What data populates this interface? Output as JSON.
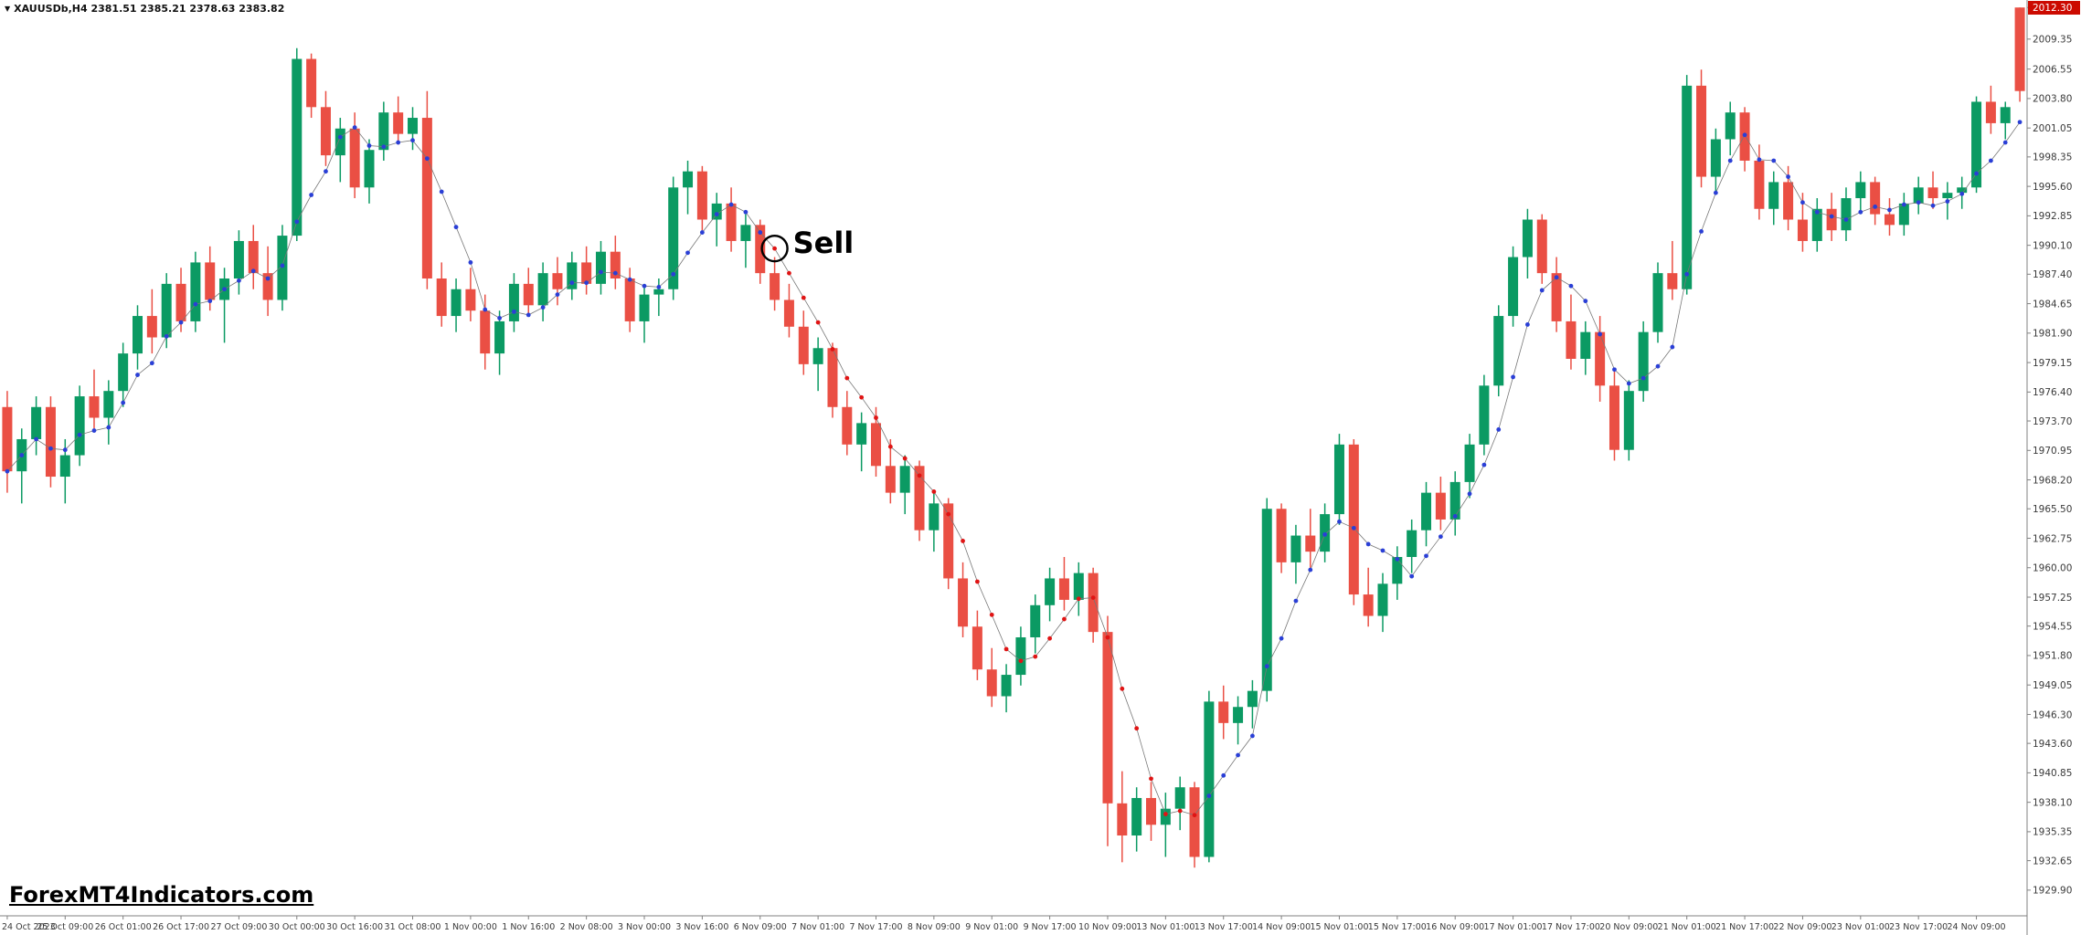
{
  "window": {
    "symbol_info": "XAUUSDb,H4  2381.51 2385.21 2378.63 2383.82",
    "watermark": "ForexMT4Indicators.com"
  },
  "icons": {
    "symbol_dropdown": "▼"
  },
  "annotations": {
    "sell_label": "Sell"
  },
  "colors": {
    "background": "#ffffff",
    "bull": "#0b9a63",
    "bear": "#ea4f44",
    "ma_up": "#2a3fd6",
    "ma_down": "#e01414",
    "ma_line": "#777777",
    "axis_text": "#3a3a3a",
    "axis_line": "#808080",
    "badge_bg": "#cc0a00",
    "badge_text": "#ffffff",
    "sell_ring": "#000000"
  },
  "chart_data": {
    "type": "candlestick",
    "title": "XAUUSDb,H4",
    "grid": false,
    "legend": false,
    "ylim": [
      1927.5,
      2013.0
    ],
    "y_top_badge": "2012.30",
    "y_tick_labels": [
      "2012.30",
      "2009.35",
      "2006.55",
      "2003.80",
      "2001.05",
      "1998.35",
      "1995.60",
      "1992.85",
      "1990.10",
      "1987.40",
      "1984.65",
      "1981.90",
      "1979.15",
      "1976.40",
      "1973.70",
      "1970.95",
      "1968.20",
      "1965.50",
      "1962.75",
      "1960.00",
      "1957.25",
      "1954.55",
      "1951.80",
      "1949.05",
      "1946.30",
      "1943.60",
      "1940.85",
      "1938.10",
      "1935.35",
      "1932.65",
      "1929.90"
    ],
    "x_tick_labels": [
      "24 Oct 2023",
      "25 Oct 09:00",
      "26 Oct 01:00",
      "26 Oct 17:00",
      "27 Oct 09:00",
      "30 Oct 00:00",
      "30 Oct 16:00",
      "31 Oct 08:00",
      "1 Nov 00:00",
      "1 Nov 16:00",
      "2 Nov 08:00",
      "3 Nov 00:00",
      "3 Nov 16:00",
      "6 Nov 09:00",
      "7 Nov 01:00",
      "7 Nov 17:00",
      "8 Nov 09:00",
      "9 Nov 01:00",
      "9 Nov 17:00",
      "10 Nov 09:00",
      "13 Nov 01:00",
      "13 Nov 17:00",
      "14 Nov 09:00",
      "15 Nov 01:00",
      "15 Nov 17:00",
      "16 Nov 09:00",
      "17 Nov 01:00",
      "17 Nov 17:00",
      "20 Nov 09:00",
      "21 Nov 01:00",
      "21 Nov 17:00",
      "22 Nov 09:00",
      "23 Nov 01:00",
      "23 Nov 17:00",
      "24 Nov 09:00"
    ],
    "candles_per_x_tick": 4,
    "ma": {
      "period": 5,
      "red_start": 53,
      "red_end": 82
    },
    "sell_marker": {
      "index": 53,
      "label": "Sell"
    },
    "candles": [
      [
        1975.0,
        1976.5,
        1967.0,
        1969.0
      ],
      [
        1969.0,
        1973.0,
        1966.0,
        1972.0
      ],
      [
        1972.0,
        1976.0,
        1970.5,
        1975.0
      ],
      [
        1975.0,
        1976.0,
        1967.5,
        1968.5
      ],
      [
        1968.5,
        1972.0,
        1966.0,
        1970.5
      ],
      [
        1970.5,
        1977.0,
        1969.5,
        1976.0
      ],
      [
        1976.0,
        1978.5,
        1973.0,
        1974.0
      ],
      [
        1974.0,
        1977.5,
        1971.5,
        1976.5
      ],
      [
        1976.5,
        1981.0,
        1975.0,
        1980.0
      ],
      [
        1980.0,
        1984.5,
        1978.5,
        1983.5
      ],
      [
        1983.5,
        1986.0,
        1980.0,
        1981.5
      ],
      [
        1981.5,
        1987.5,
        1980.5,
        1986.5
      ],
      [
        1986.5,
        1988.0,
        1982.0,
        1983.0
      ],
      [
        1983.0,
        1989.5,
        1982.0,
        1988.5
      ],
      [
        1988.5,
        1990.0,
        1984.0,
        1985.0
      ],
      [
        1985.0,
        1988.0,
        1981.0,
        1987.0
      ],
      [
        1987.0,
        1991.5,
        1985.5,
        1990.5
      ],
      [
        1990.5,
        1992.0,
        1986.0,
        1987.5
      ],
      [
        1987.5,
        1990.0,
        1983.5,
        1985.0
      ],
      [
        1985.0,
        1992.0,
        1984.0,
        1991.0
      ],
      [
        1991.0,
        2008.5,
        1990.5,
        2007.5
      ],
      [
        2007.5,
        2008.0,
        2002.0,
        2003.0
      ],
      [
        2003.0,
        2004.5,
        1997.5,
        1998.5
      ],
      [
        1998.5,
        2002.0,
        1996.0,
        2001.0
      ],
      [
        2001.0,
        2002.5,
        1994.5,
        1995.5
      ],
      [
        1995.5,
        2000.0,
        1994.0,
        1999.0
      ],
      [
        1999.0,
        2003.5,
        1998.0,
        2002.5
      ],
      [
        2002.5,
        2004.0,
        1999.5,
        2000.5
      ],
      [
        2000.5,
        2003.0,
        1999.0,
        2002.0
      ],
      [
        2002.0,
        2004.5,
        1986.0,
        1987.0
      ],
      [
        1987.0,
        1988.5,
        1982.5,
        1983.5
      ],
      [
        1983.5,
        1987.0,
        1982.0,
        1986.0
      ],
      [
        1986.0,
        1988.0,
        1983.0,
        1984.0
      ],
      [
        1984.0,
        1985.5,
        1978.5,
        1980.0
      ],
      [
        1980.0,
        1984.0,
        1978.0,
        1983.0
      ],
      [
        1983.0,
        1987.5,
        1982.0,
        1986.5
      ],
      [
        1986.5,
        1988.0,
        1983.5,
        1984.5
      ],
      [
        1984.5,
        1988.5,
        1983.0,
        1987.5
      ],
      [
        1987.5,
        1989.0,
        1984.5,
        1986.0
      ],
      [
        1986.0,
        1989.5,
        1985.0,
        1988.5
      ],
      [
        1988.5,
        1990.0,
        1985.5,
        1986.5
      ],
      [
        1986.5,
        1990.5,
        1985.5,
        1989.5
      ],
      [
        1989.5,
        1991.0,
        1986.0,
        1987.0
      ],
      [
        1987.0,
        1988.0,
        1982.0,
        1983.0
      ],
      [
        1983.0,
        1986.5,
        1981.0,
        1985.5
      ],
      [
        1985.5,
        1987.0,
        1983.5,
        1986.0
      ],
      [
        1986.0,
        1996.5,
        1985.0,
        1995.5
      ],
      [
        1995.5,
        1998.0,
        1993.0,
        1997.0
      ],
      [
        1997.0,
        1997.5,
        1991.5,
        1992.5
      ],
      [
        1992.5,
        1995.0,
        1990.0,
        1994.0
      ],
      [
        1994.0,
        1995.5,
        1989.5,
        1990.5
      ],
      [
        1990.5,
        1993.0,
        1988.0,
        1992.0
      ],
      [
        1992.0,
        1992.5,
        1986.5,
        1987.5
      ],
      [
        1987.5,
        1989.0,
        1984.0,
        1985.0
      ],
      [
        1985.0,
        1986.5,
        1981.5,
        1982.5
      ],
      [
        1982.5,
        1984.0,
        1978.0,
        1979.0
      ],
      [
        1979.0,
        1981.5,
        1976.5,
        1980.5
      ],
      [
        1980.5,
        1981.0,
        1974.0,
        1975.0
      ],
      [
        1975.0,
        1976.5,
        1970.5,
        1971.5
      ],
      [
        1971.5,
        1974.5,
        1969.0,
        1973.5
      ],
      [
        1973.5,
        1975.0,
        1968.5,
        1969.5
      ],
      [
        1969.5,
        1972.0,
        1966.0,
        1967.0
      ],
      [
        1967.0,
        1970.5,
        1965.0,
        1969.5
      ],
      [
        1969.5,
        1970.0,
        1962.5,
        1963.5
      ],
      [
        1963.5,
        1967.0,
        1961.5,
        1966.0
      ],
      [
        1966.0,
        1966.5,
        1958.0,
        1959.0
      ],
      [
        1959.0,
        1960.5,
        1953.5,
        1954.5
      ],
      [
        1954.5,
        1956.0,
        1949.5,
        1950.5
      ],
      [
        1950.5,
        1952.5,
        1947.0,
        1948.0
      ],
      [
        1948.0,
        1951.0,
        1946.5,
        1950.0
      ],
      [
        1950.0,
        1954.5,
        1949.0,
        1953.5
      ],
      [
        1953.5,
        1957.5,
        1952.0,
        1956.5
      ],
      [
        1956.5,
        1960.0,
        1955.0,
        1959.0
      ],
      [
        1959.0,
        1961.0,
        1956.0,
        1957.0
      ],
      [
        1957.0,
        1960.5,
        1955.5,
        1959.5
      ],
      [
        1959.5,
        1960.0,
        1953.0,
        1954.0
      ],
      [
        1954.0,
        1955.5,
        1934.0,
        1938.0
      ],
      [
        1938.0,
        1941.0,
        1932.5,
        1935.0
      ],
      [
        1935.0,
        1939.5,
        1933.5,
        1938.5
      ],
      [
        1938.5,
        1940.0,
        1934.5,
        1936.0
      ],
      [
        1936.0,
        1939.0,
        1933.0,
        1937.5
      ],
      [
        1937.5,
        1940.5,
        1935.5,
        1939.5
      ],
      [
        1939.5,
        1940.0,
        1932.0,
        1933.0
      ],
      [
        1933.0,
        1948.5,
        1932.5,
        1947.5
      ],
      [
        1947.5,
        1949.0,
        1944.0,
        1945.5
      ],
      [
        1945.5,
        1948.0,
        1943.5,
        1947.0
      ],
      [
        1947.0,
        1949.5,
        1945.0,
        1948.5
      ],
      [
        1948.5,
        1966.5,
        1947.5,
        1965.5
      ],
      [
        1965.5,
        1966.0,
        1959.5,
        1960.5
      ],
      [
        1960.5,
        1964.0,
        1958.5,
        1963.0
      ],
      [
        1963.0,
        1965.5,
        1960.0,
        1961.5
      ],
      [
        1961.5,
        1966.0,
        1960.5,
        1965.0
      ],
      [
        1965.0,
        1972.5,
        1964.0,
        1971.5
      ],
      [
        1971.5,
        1972.0,
        1956.5,
        1957.5
      ],
      [
        1957.5,
        1960.0,
        1954.5,
        1955.5
      ],
      [
        1955.5,
        1959.5,
        1954.0,
        1958.5
      ],
      [
        1958.5,
        1962.0,
        1957.0,
        1961.0
      ],
      [
        1961.0,
        1964.5,
        1959.5,
        1963.5
      ],
      [
        1963.5,
        1968.0,
        1962.0,
        1967.0
      ],
      [
        1967.0,
        1968.5,
        1963.5,
        1964.5
      ],
      [
        1964.5,
        1969.0,
        1963.0,
        1968.0
      ],
      [
        1968.0,
        1972.5,
        1966.5,
        1971.5
      ],
      [
        1971.5,
        1978.0,
        1970.5,
        1977.0
      ],
      [
        1977.0,
        1984.5,
        1976.0,
        1983.5
      ],
      [
        1983.5,
        1990.0,
        1982.5,
        1989.0
      ],
      [
        1989.0,
        1993.5,
        1987.0,
        1992.5
      ],
      [
        1992.5,
        1993.0,
        1986.5,
        1987.5
      ],
      [
        1987.5,
        1989.0,
        1982.0,
        1983.0
      ],
      [
        1983.0,
        1985.5,
        1978.5,
        1979.5
      ],
      [
        1979.5,
        1983.0,
        1978.0,
        1982.0
      ],
      [
        1982.0,
        1983.5,
        1975.5,
        1977.0
      ],
      [
        1977.0,
        1978.5,
        1970.0,
        1971.0
      ],
      [
        1971.0,
        1977.5,
        1970.0,
        1976.5
      ],
      [
        1976.5,
        1983.0,
        1975.5,
        1982.0
      ],
      [
        1982.0,
        1988.5,
        1981.0,
        1987.5
      ],
      [
        1987.5,
        1990.5,
        1985.0,
        1986.0
      ],
      [
        1986.0,
        2006.0,
        1985.5,
        2005.0
      ],
      [
        2005.0,
        2006.5,
        1995.5,
        1996.5
      ],
      [
        1996.5,
        2001.0,
        1995.0,
        2000.0
      ],
      [
        2000.0,
        2003.5,
        1998.5,
        2002.5
      ],
      [
        2002.5,
        2003.0,
        1997.0,
        1998.0
      ],
      [
        1998.0,
        1999.5,
        1992.5,
        1993.5
      ],
      [
        1993.5,
        1997.0,
        1992.0,
        1996.0
      ],
      [
        1996.0,
        1997.5,
        1991.5,
        1992.5
      ],
      [
        1992.5,
        1995.0,
        1989.5,
        1990.5
      ],
      [
        1990.5,
        1994.5,
        1989.5,
        1993.5
      ],
      [
        1993.5,
        1995.0,
        1990.5,
        1991.5
      ],
      [
        1991.5,
        1995.5,
        1990.5,
        1994.5
      ],
      [
        1994.5,
        1997.0,
        1993.0,
        1996.0
      ],
      [
        1996.0,
        1996.5,
        1992.0,
        1993.0
      ],
      [
        1993.0,
        1994.5,
        1991.0,
        1992.0
      ],
      [
        1992.0,
        1995.0,
        1991.0,
        1994.0
      ],
      [
        1994.0,
        1996.5,
        1993.0,
        1995.5
      ],
      [
        1995.5,
        1997.0,
        1993.5,
        1994.5
      ],
      [
        1994.5,
        1996.0,
        1992.5,
        1995.0
      ],
      [
        1995.0,
        1996.5,
        1993.5,
        1995.5
      ],
      [
        1995.5,
        2004.0,
        1995.0,
        2003.5
      ],
      [
        2003.5,
        2005.0,
        2000.5,
        2001.5
      ],
      [
        2001.5,
        2003.5,
        2000.0,
        2003.0
      ],
      [
        2012.3,
        2012.3,
        2003.5,
        2004.5
      ]
    ]
  }
}
